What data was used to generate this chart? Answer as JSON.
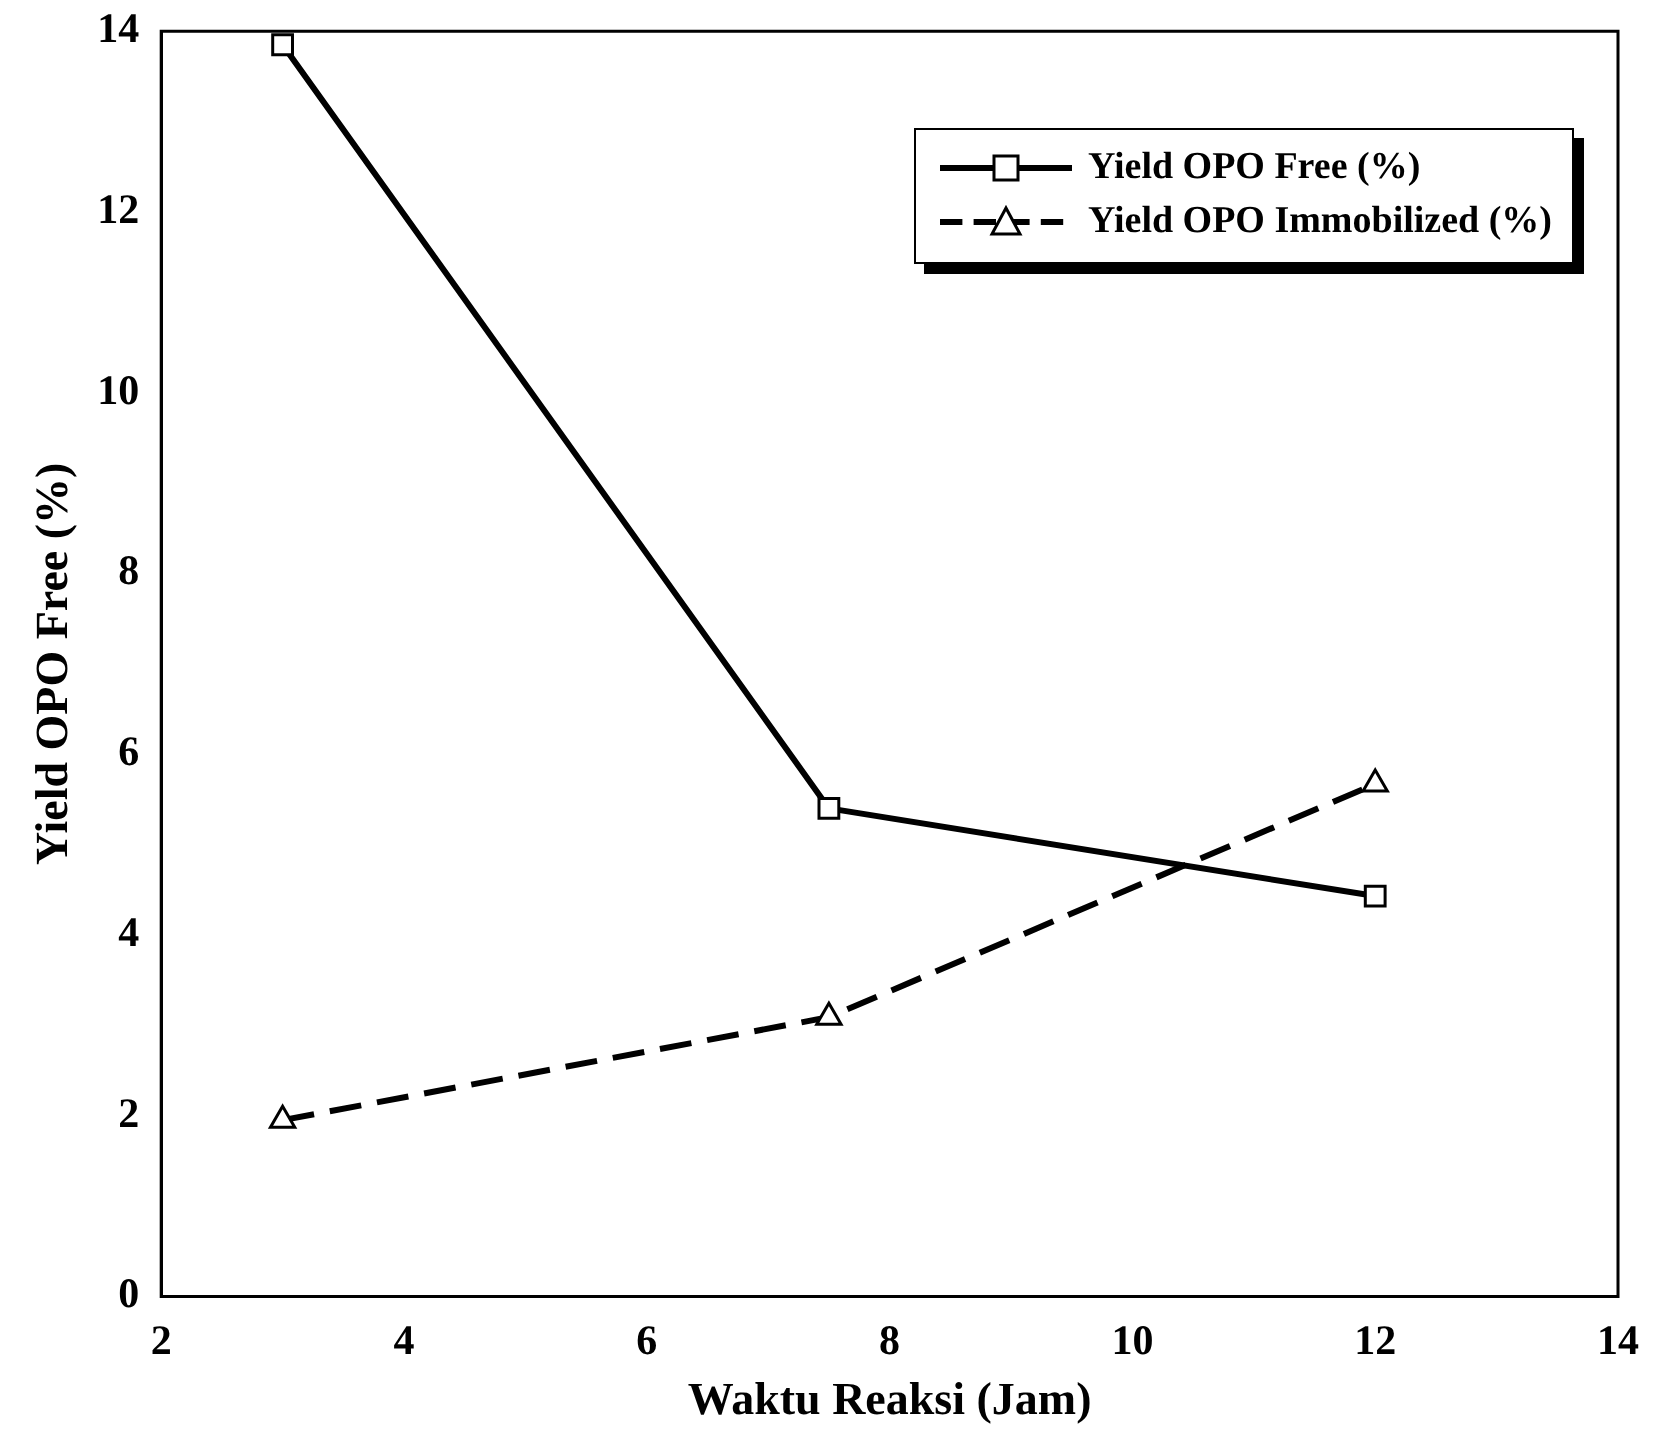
{
  "chart_data": {
    "type": "line",
    "xlabel": "Waktu Reaksi (Jam)",
    "ylabel": "Yield OPO Free (%)",
    "x": [
      3,
      7.5,
      12
    ],
    "series": [
      {
        "name": "Yield OPO Free (%)",
        "color": "#000000",
        "values": [
          13.85,
          5.4,
          4.43
        ],
        "marker": "square",
        "line_style": "solid"
      },
      {
        "name": "Yield OPO Immobilized (%)",
        "color": "#000000",
        "values": [
          1.95,
          3.09,
          5.67
        ],
        "marker": "triangle",
        "line_style": "dashed"
      }
    ],
    "xlim": [
      2,
      14
    ],
    "xticks": [
      2,
      4,
      6,
      8,
      10,
      12,
      14
    ],
    "ylim": [
      0,
      14
    ],
    "yticks": [
      0,
      2,
      4,
      6,
      8,
      10,
      12,
      14
    ],
    "grid": false,
    "legend": "top right"
  }
}
